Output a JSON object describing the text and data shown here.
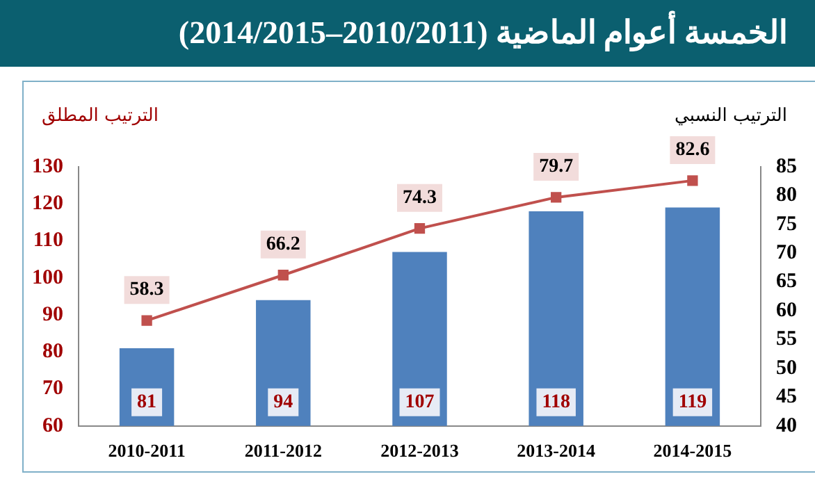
{
  "chart_data": {
    "type": "bar",
    "title": "الخمسة أعوام الماضية (2010/2011–2014/2015)",
    "ylabel": "الترتيب المطلق",
    "y2label": "الترتيب النسبي",
    "categories": [
      "2010-2011",
      "2011-2012",
      "2012-2013",
      "2013-2014",
      "2014-2015"
    ],
    "series": [
      {
        "color": "#4f81bd",
        "values": [
          81,
          94,
          107,
          118,
          119
        ]
      },
      {
        "type": "line",
        "axis": "y2",
        "color": "#c0504d",
        "values": [
          58.3,
          66.2,
          74.3,
          79.7,
          82.6
        ]
      }
    ],
    "ylim": [
      60,
      130
    ],
    "yticks": [
      60,
      70,
      80,
      90,
      100,
      110,
      120,
      130
    ],
    "y2lim": [
      40,
      85
    ],
    "y2ticks": [
      40,
      45,
      50,
      55,
      60,
      65,
      70,
      75,
      80,
      85
    ],
    "data_labels": true,
    "grid": false,
    "legend": false,
    "marker": "square",
    "line_style": "solid"
  }
}
